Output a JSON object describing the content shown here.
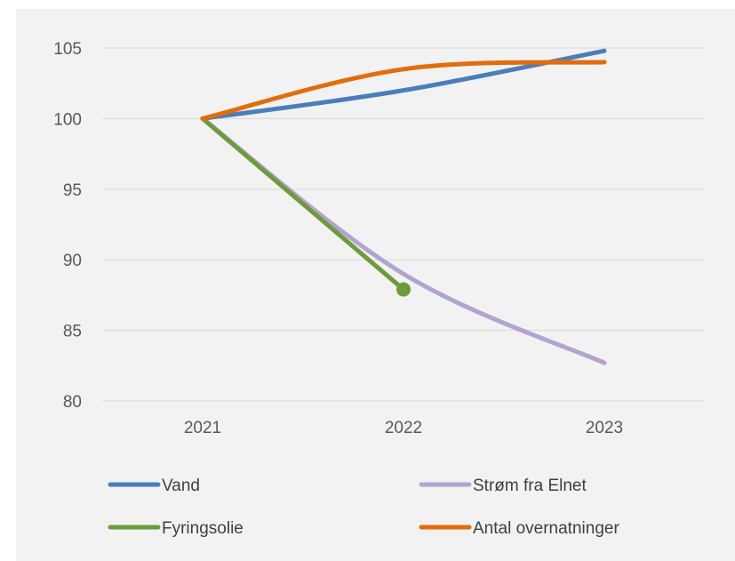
{
  "chart_data": {
    "type": "line",
    "title": "",
    "xlabel": "",
    "ylabel": "",
    "categories": [
      "2021",
      "2022",
      "2023"
    ],
    "y_ticks": [
      "80",
      "85",
      "90",
      "95",
      "100",
      "105"
    ],
    "ylim": [
      80,
      105
    ],
    "grid": "horizontal",
    "legend_position": "bottom",
    "series": [
      {
        "name": "Vand",
        "color": "#4a7ebb",
        "values": [
          100,
          102,
          104.8
        ]
      },
      {
        "name": "Strøm fra Elnet",
        "color": "#b3a3cf",
        "values": [
          100,
          89,
          82.7
        ]
      },
      {
        "name": "Fyringsolie",
        "color": "#6e9a3c",
        "values": [
          100,
          87.9,
          null
        ]
      },
      {
        "name": "Antal overnatninger",
        "color": "#e46c0a",
        "values": [
          100,
          103.5,
          104
        ]
      }
    ]
  }
}
